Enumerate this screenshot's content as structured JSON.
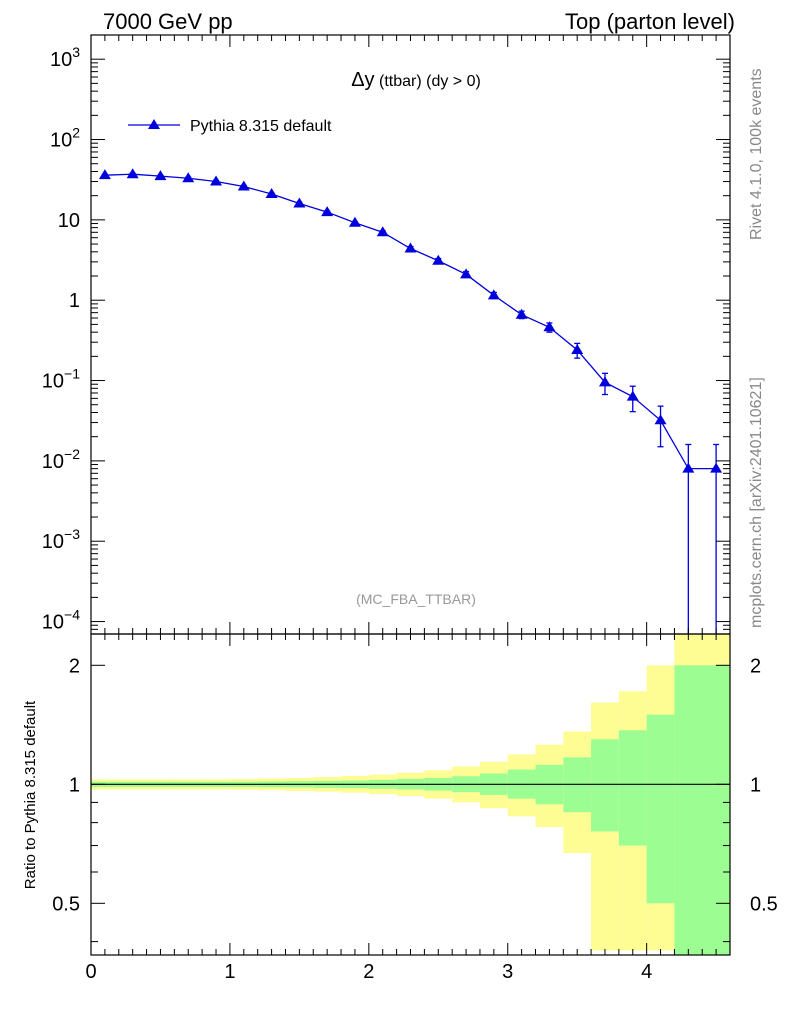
{
  "header": {
    "left": "7000 GeV pp",
    "right": "Top (parton level)"
  },
  "side_labels": {
    "rivet": "Rivet 4.1.0,  100k events",
    "mcplots": "mcplots.cern.ch [arXiv:2401.10621]"
  },
  "chart_data": {
    "type": "line",
    "title_symbol": "Δy",
    "title_rest": " (ttbar) (dy > 0)",
    "analysis_tag": "(MC_FBA_TTBAR)",
    "legend": {
      "label": "Pythia 8.315 default",
      "position": "top-left"
    },
    "main_panel": {
      "yscale": "log",
      "ylim": [
        7e-05,
        2000
      ],
      "yticks": [
        {
          "value": 1000,
          "base": "10",
          "exp": "3"
        },
        {
          "value": 100,
          "base": "10",
          "exp": "2"
        },
        {
          "value": 10,
          "base": "10",
          "exp": ""
        },
        {
          "value": 1,
          "base": "1",
          "exp": ""
        },
        {
          "value": 0.1,
          "base": "10",
          "exp": "−1"
        },
        {
          "value": 0.01,
          "base": "10",
          "exp": "−2"
        },
        {
          "value": 0.001,
          "base": "10",
          "exp": "−3"
        },
        {
          "value": 0.0001,
          "base": "10",
          "exp": "−4"
        }
      ]
    },
    "xlim": [
      0,
      4.6
    ],
    "xticks": [
      "0",
      "1",
      "2",
      "3",
      "4"
    ],
    "series": [
      {
        "name": "Pythia 8.315 default",
        "color": "#0000dd",
        "x": [
          0.1,
          0.3,
          0.5,
          0.7,
          0.9,
          1.1,
          1.3,
          1.5,
          1.7,
          1.9,
          2.1,
          2.3,
          2.5,
          2.7,
          2.9,
          3.1,
          3.3,
          3.5,
          3.7,
          3.9,
          4.1,
          4.3,
          4.5
        ],
        "y": [
          36,
          37,
          35,
          33,
          30,
          26,
          21,
          16,
          12.5,
          9.2,
          7.0,
          4.4,
          3.1,
          2.1,
          1.15,
          0.66,
          0.46,
          0.24,
          0.095,
          0.063,
          0.032,
          0.008,
          0.008
        ],
        "yerr_low": [
          1,
          1,
          1,
          1,
          1,
          0.8,
          0.6,
          0.5,
          0.4,
          0.3,
          0.3,
          0.25,
          0.2,
          0.17,
          0.1,
          0.07,
          0.06,
          0.05,
          0.028,
          0.022,
          0.017,
          0.008,
          0.008
        ],
        "yerr_high": [
          1,
          1,
          1,
          1,
          1,
          0.8,
          0.6,
          0.5,
          0.4,
          0.3,
          0.3,
          0.25,
          0.2,
          0.17,
          0.1,
          0.07,
          0.06,
          0.05,
          0.028,
          0.022,
          0.016,
          0.008,
          0.008
        ]
      }
    ],
    "ratio_panel": {
      "ylabel": "Ratio to Pythia 8.315 default",
      "yscale": "log",
      "ylim": [
        0.37,
        2.4
      ],
      "yticks": [
        {
          "value": 2,
          "label": "2"
        },
        {
          "value": 1,
          "label": "1"
        },
        {
          "value": 0.5,
          "label": "0.5"
        }
      ],
      "bins": [
        {
          "lo": 0.0,
          "hi": 0.2,
          "g_lo": 0.985,
          "g_hi": 1.015,
          "y_lo": 0.97,
          "y_hi": 1.03
        },
        {
          "lo": 0.2,
          "hi": 0.4,
          "g_lo": 0.985,
          "g_hi": 1.015,
          "y_lo": 0.97,
          "y_hi": 1.03
        },
        {
          "lo": 0.4,
          "hi": 0.6,
          "g_lo": 0.985,
          "g_hi": 1.015,
          "y_lo": 0.97,
          "y_hi": 1.03
        },
        {
          "lo": 0.6,
          "hi": 0.8,
          "g_lo": 0.985,
          "g_hi": 1.015,
          "y_lo": 0.97,
          "y_hi": 1.03
        },
        {
          "lo": 0.8,
          "hi": 1.0,
          "g_lo": 0.985,
          "g_hi": 1.015,
          "y_lo": 0.97,
          "y_hi": 1.03
        },
        {
          "lo": 1.0,
          "hi": 1.2,
          "g_lo": 0.985,
          "g_hi": 1.015,
          "y_lo": 0.968,
          "y_hi": 1.032
        },
        {
          "lo": 1.2,
          "hi": 1.4,
          "g_lo": 0.983,
          "g_hi": 1.017,
          "y_lo": 0.966,
          "y_hi": 1.035
        },
        {
          "lo": 1.4,
          "hi": 1.6,
          "g_lo": 0.982,
          "g_hi": 1.018,
          "y_lo": 0.962,
          "y_hi": 1.038
        },
        {
          "lo": 1.6,
          "hi": 1.8,
          "g_lo": 0.98,
          "g_hi": 1.02,
          "y_lo": 0.958,
          "y_hi": 1.043
        },
        {
          "lo": 1.8,
          "hi": 2.0,
          "g_lo": 0.978,
          "g_hi": 1.022,
          "y_lo": 0.953,
          "y_hi": 1.05
        },
        {
          "lo": 2.0,
          "hi": 2.2,
          "g_lo": 0.975,
          "g_hi": 1.026,
          "y_lo": 0.945,
          "y_hi": 1.058
        },
        {
          "lo": 2.2,
          "hi": 2.4,
          "g_lo": 0.97,
          "g_hi": 1.032,
          "y_lo": 0.935,
          "y_hi": 1.07
        },
        {
          "lo": 2.4,
          "hi": 2.6,
          "g_lo": 0.964,
          "g_hi": 1.038,
          "y_lo": 0.92,
          "y_hi": 1.085
        },
        {
          "lo": 2.6,
          "hi": 2.8,
          "g_lo": 0.955,
          "g_hi": 1.048,
          "y_lo": 0.9,
          "y_hi": 1.11
        },
        {
          "lo": 2.8,
          "hi": 3.0,
          "g_lo": 0.94,
          "g_hi": 1.065,
          "y_lo": 0.87,
          "y_hi": 1.14
        },
        {
          "lo": 3.0,
          "hi": 3.2,
          "g_lo": 0.92,
          "g_hi": 1.09,
          "y_lo": 0.83,
          "y_hi": 1.19
        },
        {
          "lo": 3.2,
          "hi": 3.4,
          "g_lo": 0.89,
          "g_hi": 1.12,
          "y_lo": 0.78,
          "y_hi": 1.26
        },
        {
          "lo": 3.4,
          "hi": 3.6,
          "g_lo": 0.85,
          "g_hi": 1.17,
          "y_lo": 0.67,
          "y_hi": 1.36
        },
        {
          "lo": 3.6,
          "hi": 3.8,
          "g_lo": 0.76,
          "g_hi": 1.3,
          "y_lo": 0.38,
          "y_hi": 1.61
        },
        {
          "lo": 3.8,
          "hi": 4.0,
          "g_lo": 0.7,
          "g_hi": 1.37,
          "y_lo": 0.38,
          "y_hi": 1.72
        },
        {
          "lo": 4.0,
          "hi": 4.2,
          "g_lo": 0.5,
          "g_hi": 1.5,
          "y_lo": 0.38,
          "y_hi": 2.0
        },
        {
          "lo": 4.2,
          "hi": 4.6,
          "g_lo": 0.37,
          "g_hi": 2.0,
          "y_lo": 0.37,
          "y_hi": 2.4
        }
      ],
      "band_colors": {
        "inner": "#9cfd93",
        "outer": "#fdfd93"
      }
    }
  }
}
